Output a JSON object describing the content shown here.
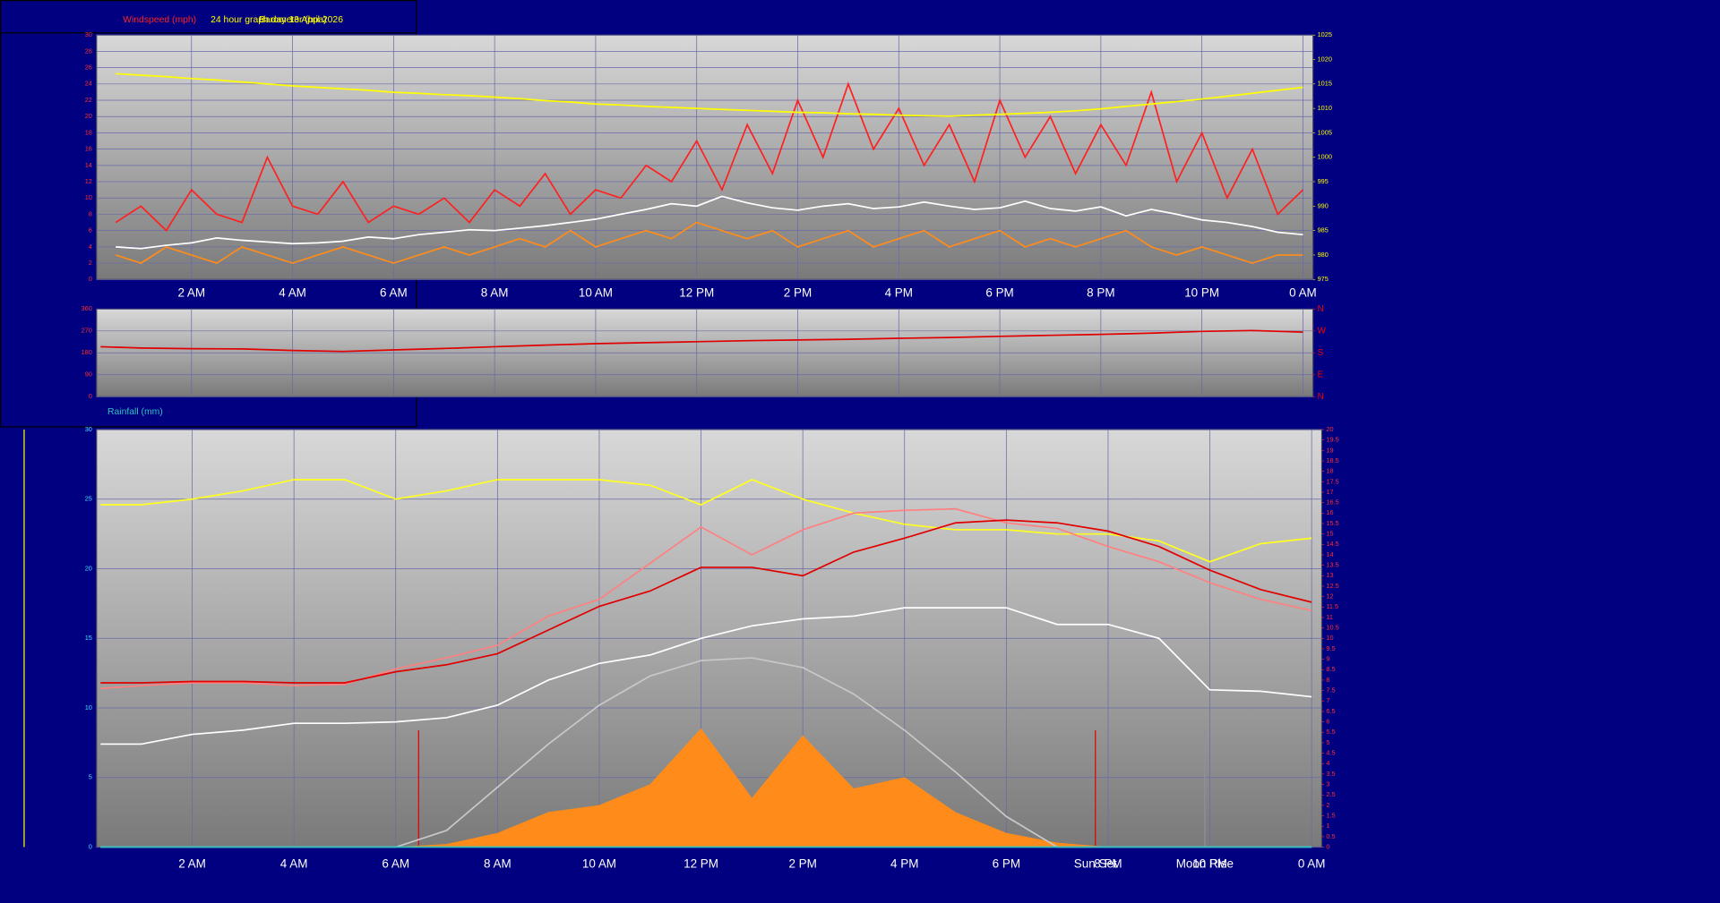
{
  "chart_data": [
    {
      "type": "line",
      "title": "24 hour graph day 13 April 2026",
      "x": [
        0.5,
        1,
        1.5,
        2,
        2.5,
        3,
        3.5,
        4,
        4.5,
        5,
        5.5,
        6,
        6.5,
        7,
        7.5,
        8,
        8.5,
        9,
        9.5,
        10,
        10.5,
        11,
        11.5,
        12,
        12.5,
        13,
        13.5,
        14,
        14.5,
        15,
        15.5,
        16,
        16.5,
        17,
        17.5,
        18,
        18.5,
        19,
        19.5,
        20,
        20.5,
        21,
        21.5,
        22,
        22.5,
        23,
        23.5,
        24
      ],
      "xlim": [
        0.12,
        24.2
      ],
      "xticks": [
        {
          "value": 2,
          "label": "2 AM"
        },
        {
          "value": 4,
          "label": "4 AM"
        },
        {
          "value": 6,
          "label": "6 AM"
        },
        {
          "value": 8,
          "label": "8 AM"
        },
        {
          "value": 10,
          "label": "10 AM"
        },
        {
          "value": 12,
          "label": "12 PM"
        },
        {
          "value": 14,
          "label": "2 PM"
        },
        {
          "value": 16,
          "label": "4 PM"
        },
        {
          "value": 18,
          "label": "6 PM"
        },
        {
          "value": 20,
          "label": "8 PM"
        },
        {
          "value": 22,
          "label": "10 PM"
        },
        {
          "value": 24,
          "label": "0 AM"
        }
      ],
      "ylim": [
        0,
        30
      ],
      "yticks": [
        0,
        2,
        4,
        6,
        8,
        10,
        12,
        14,
        16,
        18,
        20,
        22,
        24,
        26,
        28,
        30
      ],
      "y2lim": [
        975,
        1025
      ],
      "y2ticks": [
        975,
        980,
        985,
        990,
        995,
        1000,
        1005,
        1010,
        1015,
        1020,
        1025
      ],
      "grid": true,
      "series": [
        {
          "name": "Windspeed (mph)",
          "color": "#ff2020",
          "values": [
            7,
            9,
            6,
            11,
            8,
            7,
            15,
            9,
            8,
            12,
            7,
            9,
            8,
            10,
            7,
            11,
            9,
            13,
            8,
            11,
            10,
            14,
            12,
            17,
            11,
            19,
            13,
            22,
            15,
            24,
            16,
            21,
            14,
            19,
            12,
            22,
            15,
            20,
            13,
            19,
            14,
            23,
            12,
            18,
            10,
            16,
            8,
            11
          ]
        },
        {
          "color": "#ff8c1a",
          "values": [
            3,
            2,
            4,
            3,
            2,
            4,
            3,
            2,
            3,
            4,
            3,
            2,
            3,
            4,
            3,
            4,
            5,
            4,
            6,
            4,
            5,
            6,
            5,
            7,
            6,
            5,
            6,
            4,
            5,
            6,
            4,
            5,
            6,
            4,
            5,
            6,
            4,
            5,
            4,
            5,
            6,
            4,
            3,
            4,
            3,
            2,
            3,
            3
          ]
        },
        {
          "color": "#ffffff",
          "values": [
            4.0,
            3.8,
            4.2,
            4.5,
            5.1,
            4.8,
            4.6,
            4.4,
            4.5,
            4.7,
            5.2,
            5.0,
            5.5,
            5.8,
            6.1,
            6.0,
            6.3,
            6.6,
            7.0,
            7.4,
            8.0,
            8.6,
            9.3,
            9.0,
            10.2,
            9.4,
            8.8,
            8.5,
            9.0,
            9.3,
            8.7,
            8.9,
            9.5,
            9.0,
            8.6,
            8.8,
            9.6,
            8.7,
            8.4,
            8.9,
            7.8,
            8.6,
            8.0,
            7.3,
            7.0,
            6.5,
            5.8,
            5.5
          ]
        },
        {
          "name": "Barometer (hpa)",
          "color": "#ffff00",
          "axis": "y2",
          "values": [
            1017.1,
            1016.8,
            1016.5,
            1016.1,
            1015.8,
            1015.4,
            1015.0,
            1014.6,
            1014.3,
            1014.0,
            1013.7,
            1013.3,
            1013.1,
            1012.8,
            1012.6,
            1012.3,
            1012.0,
            1011.6,
            1011.3,
            1010.9,
            1010.7,
            1010.4,
            1010.2,
            1010.0,
            1009.8,
            1009.6,
            1009.4,
            1009.2,
            1009.1,
            1008.9,
            1008.8,
            1008.6,
            1008.5,
            1008.4,
            1008.6,
            1008.8,
            1009.0,
            1009.2,
            1009.5,
            1009.9,
            1010.4,
            1010.9,
            1011.4,
            1011.9,
            1012.5,
            1013.1,
            1013.7,
            1014.3
          ]
        }
      ]
    },
    {
      "type": "line",
      "x": [
        0.2,
        1,
        2,
        3,
        4,
        5,
        6,
        7,
        8,
        9,
        10,
        11,
        12,
        13,
        14,
        15,
        16,
        17,
        18,
        19,
        20,
        21,
        22,
        23,
        24
      ],
      "xlim": [
        0.12,
        24.2
      ],
      "ylim": [
        0,
        360
      ],
      "yticks": [
        0,
        90,
        180,
        270,
        360
      ],
      "y2lim": [
        0,
        360
      ],
      "y2ticks": [
        {
          "value": 360,
          "label": "N"
        },
        {
          "value": 270,
          "label": "W"
        },
        {
          "value": 180,
          "label": "S"
        },
        {
          "value": 90,
          "label": "E"
        },
        {
          "value": 0,
          "label": "N"
        }
      ],
      "grid": true,
      "series": [
        {
          "color": "#e00000",
          "values": [
            205,
            200,
            197,
            196,
            190,
            186,
            192,
            198,
            205,
            212,
            218,
            222,
            226,
            230,
            233,
            236,
            240,
            243,
            248,
            252,
            256,
            261,
            268,
            272,
            265
          ]
        }
      ]
    },
    {
      "type": "line",
      "x": [
        0.2,
        1,
        2,
        3,
        4,
        5,
        6,
        7,
        8,
        9,
        10,
        11,
        12,
        13,
        14,
        15,
        16,
        17,
        18,
        19,
        20,
        21,
        22,
        23,
        24
      ],
      "xlim": [
        0.12,
        24.2
      ],
      "xticks": [
        {
          "value": 2,
          "label": "2 AM"
        },
        {
          "value": 4,
          "label": "4 AM"
        },
        {
          "value": 6,
          "label": "6 AM"
        },
        {
          "value": 8,
          "label": "8 AM"
        },
        {
          "value": 10,
          "label": "10 AM"
        },
        {
          "value": 12,
          "label": "12 PM"
        },
        {
          "value": 14,
          "label": "2 PM"
        },
        {
          "value": 16,
          "label": "4 PM"
        },
        {
          "value": 18,
          "label": "6 PM"
        },
        {
          "value": 20,
          "label": "8 PM"
        },
        {
          "value": 22,
          "label": "10 PM"
        },
        {
          "value": 24,
          "label": "0 AM"
        }
      ],
      "ylim": [
        0,
        30
      ],
      "yticks": [
        0,
        5,
        10,
        15,
        20,
        25,
        30
      ],
      "y2lim": [
        0,
        20
      ],
      "y2ticks": [
        0,
        0.5,
        1,
        1.5,
        2,
        2.5,
        3,
        3.5,
        4,
        4.5,
        5,
        5.5,
        6,
        6.5,
        7,
        7.5,
        8,
        8.5,
        9,
        9.5,
        10,
        10.5,
        11,
        11.5,
        12,
        12.5,
        13,
        13.5,
        14,
        14.5,
        15,
        15.5,
        16,
        16.5,
        17,
        17.5,
        18,
        18.5,
        19,
        19.5,
        20
      ],
      "grid": true,
      "events": [
        {
          "x": 6.45,
          "color": "#e00000"
        },
        {
          "x": 19.75,
          "label": "Sun Set",
          "color": "#e00000"
        },
        {
          "x": 21.9,
          "label": "Moon Rise",
          "color": "#9090a0"
        }
      ],
      "series": [
        {
          "color": "#ff8c1a",
          "fill": true,
          "values": [
            0,
            0,
            0,
            0,
            0,
            0,
            0,
            0.2,
            1.0,
            2.5,
            3.0,
            4.5,
            8.5,
            3.5,
            8.0,
            4.2,
            5.0,
            2.5,
            1.0,
            0.3,
            0,
            0,
            0,
            0,
            0
          ]
        },
        {
          "color": "#c8c8c8",
          "values": [
            0,
            0,
            0,
            0,
            0,
            0,
            0,
            1.2,
            4.3,
            7.4,
            10.2,
            12.3,
            13.4,
            13.6,
            12.9,
            11.0,
            8.4,
            5.4,
            2.2,
            0,
            0,
            0,
            0,
            0,
            0
          ]
        },
        {
          "name": "Rainfall (mm)",
          "color": "#30c0c0",
          "values": [
            0,
            0,
            0,
            0,
            0,
            0,
            0,
            0,
            0,
            0,
            0,
            0,
            0,
            0,
            0,
            0,
            0,
            0,
            0,
            0,
            0,
            0,
            0,
            0,
            0
          ]
        },
        {
          "color": "#ffff20",
          "values": [
            24.6,
            24.6,
            25.0,
            25.6,
            26.4,
            26.4,
            25.0,
            25.6,
            26.4,
            26.4,
            26.4,
            26.0,
            24.6,
            26.4,
            25.0,
            24.0,
            23.2,
            22.8,
            22.8,
            22.5,
            22.5,
            22.0,
            20.5,
            21.8,
            22.2
          ]
        },
        {
          "color": "#ff8080",
          "values": [
            11.4,
            11.6,
            11.8,
            11.8,
            11.6,
            11.7,
            12.8,
            13.6,
            14.5,
            16.6,
            17.8,
            20.4,
            23.0,
            21.0,
            22.8,
            24.0,
            24.2,
            24.3,
            23.3,
            22.9,
            21.6,
            20.5,
            19.0,
            17.8,
            17.0
          ]
        },
        {
          "color": "#e00000",
          "values": [
            11.8,
            11.8,
            11.9,
            11.9,
            11.8,
            11.8,
            12.6,
            13.1,
            13.9,
            15.6,
            17.3,
            18.4,
            20.1,
            20.1,
            19.5,
            21.2,
            22.2,
            23.3,
            23.5,
            23.3,
            22.7,
            21.6,
            19.9,
            18.5,
            17.6
          ]
        },
        {
          "color": "#ffffff",
          "values": [
            7.4,
            7.4,
            8.1,
            8.4,
            8.9,
            8.9,
            9.0,
            9.3,
            10.2,
            12.0,
            13.2,
            13.8,
            15.0,
            15.9,
            16.4,
            16.6,
            17.2,
            17.2,
            17.2,
            16.0,
            16.0,
            15.0,
            11.3,
            11.2,
            10.8
          ]
        }
      ]
    }
  ]
}
